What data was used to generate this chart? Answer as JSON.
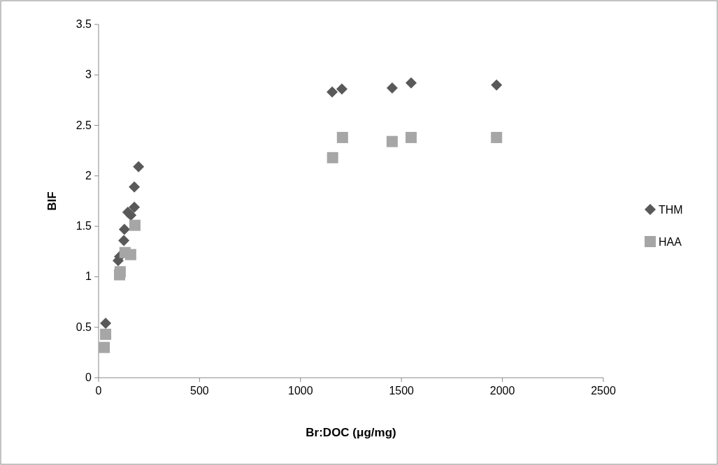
{
  "chart_data": {
    "type": "scatter",
    "xlabel": "Br:DOC (μg/mg)",
    "ylabel": "BIF",
    "xlim": [
      0,
      2500
    ],
    "xticks": [
      0,
      500,
      1000,
      1500,
      2000,
      2500
    ],
    "ylim": [
      0,
      3.5
    ],
    "yticks": [
      0,
      0.5,
      1,
      1.5,
      2,
      2.5,
      3,
      3.5
    ],
    "legend": "right",
    "series": [
      {
        "name": "THM",
        "color": "#595959",
        "marker": "diamond",
        "x": [
          35,
          97,
          104,
          125,
          128,
          145,
          160,
          177,
          177,
          198,
          1157,
          1205,
          1454,
          1548,
          1971
        ],
        "values": [
          0.54,
          1.16,
          1.2,
          1.36,
          1.47,
          1.64,
          1.61,
          1.69,
          1.89,
          2.09,
          2.83,
          2.86,
          2.87,
          2.92,
          2.9
        ]
      },
      {
        "name": "HAA",
        "color": "#a6a6a6",
        "marker": "square",
        "x": [
          28,
          35,
          104,
          107,
          131,
          159,
          180,
          1159,
          1208,
          1454,
          1548,
          1971
        ],
        "values": [
          0.3,
          0.43,
          1.02,
          1.05,
          1.24,
          1.22,
          1.51,
          2.18,
          2.38,
          2.34,
          2.38,
          2.38
        ]
      }
    ]
  }
}
